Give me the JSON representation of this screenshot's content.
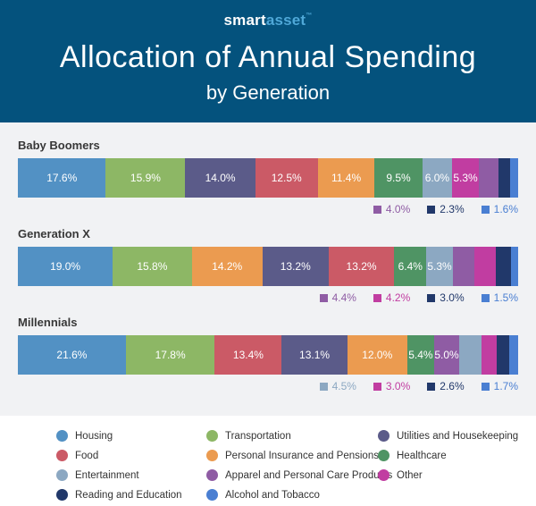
{
  "header": {
    "logo_smart": "smart",
    "logo_asset": "asset",
    "logo_tm": "™",
    "title": "Allocation of Annual Spending",
    "subtitle": "by Generation"
  },
  "colors": {
    "header_bg": "#04527d",
    "chart_bg": "#f1f2f4",
    "legend_bg": "#ffffff",
    "logo_accent": "#4fa8d8",
    "title_text": "#ffffff",
    "section_label_text": "#383838",
    "legend_text": "#333333",
    "bar_label_text": "#ffffff"
  },
  "category_colors": {
    "Housing": "#5291c4",
    "Transportation": "#8db765",
    "Utilities and Housekeeping": "#5b5b89",
    "Food": "#cb5a66",
    "Personal Insurance and Pensions": "#eb9b50",
    "Healthcare": "#4f9464",
    "Entertainment": "#8ca8c2",
    "Other": "#c13da1",
    "Apparel and Personal Care Products": "#8f5ca4",
    "Reading and Education": "#21386a",
    "Alcohol and Tobacco": "#4a7fd2"
  },
  "chart_data": {
    "type": "bar",
    "variant": "horizontal-stacked-100pct",
    "title": "Allocation of Annual Spending",
    "subtitle": "by Generation",
    "unit": "%",
    "categories": [
      "Housing",
      "Transportation",
      "Utilities and Housekeeping",
      "Food",
      "Personal Insurance and Pensions",
      "Healthcare",
      "Entertainment",
      "Other",
      "Apparel and Personal Care Products",
      "Reading and Education",
      "Alcohol and Tobacco"
    ],
    "groups": [
      {
        "label": "Baby Boomers",
        "segments": [
          {
            "category": "Housing",
            "value": 17.6,
            "label": "17.6%",
            "label_in_bar": true
          },
          {
            "category": "Transportation",
            "value": 15.9,
            "label": "15.9%",
            "label_in_bar": true
          },
          {
            "category": "Utilities and Housekeeping",
            "value": 14.0,
            "label": "14.0%",
            "label_in_bar": true
          },
          {
            "category": "Food",
            "value": 12.5,
            "label": "12.5%",
            "label_in_bar": true
          },
          {
            "category": "Personal Insurance and Pensions",
            "value": 11.4,
            "label": "11.4%",
            "label_in_bar": true
          },
          {
            "category": "Healthcare",
            "value": 9.5,
            "label": "9.5%",
            "label_in_bar": true
          },
          {
            "category": "Entertainment",
            "value": 6.0,
            "label": "6.0%",
            "label_in_bar": true
          },
          {
            "category": "Other",
            "value": 5.3,
            "label": "5.3%",
            "label_in_bar": true
          },
          {
            "category": "Apparel and Personal Care Products",
            "value": 4.0,
            "label": "4.0%",
            "label_in_bar": false
          },
          {
            "category": "Reading and Education",
            "value": 2.3,
            "label": "2.3%",
            "label_in_bar": false
          },
          {
            "category": "Alcohol and Tobacco",
            "value": 1.6,
            "label": "1.6%",
            "label_in_bar": false
          }
        ]
      },
      {
        "label": "Generation X",
        "segments": [
          {
            "category": "Housing",
            "value": 19.0,
            "label": "19.0%",
            "label_in_bar": true
          },
          {
            "category": "Transportation",
            "value": 15.8,
            "label": "15.8%",
            "label_in_bar": true
          },
          {
            "category": "Personal Insurance and Pensions",
            "value": 14.2,
            "label": "14.2%",
            "label_in_bar": true
          },
          {
            "category": "Utilities and Housekeeping",
            "value": 13.2,
            "label": "13.2%",
            "label_in_bar": true
          },
          {
            "category": "Food",
            "value": 13.2,
            "label": "13.2%",
            "label_in_bar": true
          },
          {
            "category": "Healthcare",
            "value": 6.4,
            "label": "6.4%",
            "label_in_bar": true
          },
          {
            "category": "Entertainment",
            "value": 5.3,
            "label": "5.3%",
            "label_in_bar": true
          },
          {
            "category": "Apparel and Personal Care Products",
            "value": 4.4,
            "label": "4.4%",
            "label_in_bar": false
          },
          {
            "category": "Other",
            "value": 4.2,
            "label": "4.2%",
            "label_in_bar": false
          },
          {
            "category": "Reading and Education",
            "value": 3.0,
            "label": "3.0%",
            "label_in_bar": false
          },
          {
            "category": "Alcohol and Tobacco",
            "value": 1.5,
            "label": "1.5%",
            "label_in_bar": false
          }
        ]
      },
      {
        "label": "Millennials",
        "segments": [
          {
            "category": "Housing",
            "value": 21.6,
            "label": "21.6%",
            "label_in_bar": true
          },
          {
            "category": "Transportation",
            "value": 17.8,
            "label": "17.8%",
            "label_in_bar": true
          },
          {
            "category": "Food",
            "value": 13.4,
            "label": "13.4%",
            "label_in_bar": true
          },
          {
            "category": "Utilities and Housekeeping",
            "value": 13.1,
            "label": "13.1%",
            "label_in_bar": true
          },
          {
            "category": "Personal Insurance and Pensions",
            "value": 12.0,
            "label": "12.0%",
            "label_in_bar": true
          },
          {
            "category": "Healthcare",
            "value": 5.4,
            "label": "5.4%",
            "label_in_bar": true
          },
          {
            "category": "Apparel and Personal Care Products",
            "value": 5.0,
            "label": "5.0%",
            "label_in_bar": true
          },
          {
            "category": "Entertainment",
            "value": 4.5,
            "label": "4.5%",
            "label_in_bar": false
          },
          {
            "category": "Other",
            "value": 3.0,
            "label": "3.0%",
            "label_in_bar": false
          },
          {
            "category": "Reading and Education",
            "value": 2.6,
            "label": "2.6%",
            "label_in_bar": false
          },
          {
            "category": "Alcohol and Tobacco",
            "value": 1.7,
            "label": "1.7%",
            "label_in_bar": false
          }
        ]
      }
    ],
    "legend_position": "bottom"
  },
  "legend": {
    "columns": [
      [
        "Housing",
        "Food",
        "Entertainment",
        "Reading and Education"
      ],
      [
        "Transportation",
        "Personal Insurance and Pensions",
        "Apparel and Personal Care Products",
        "Alcohol and Tobacco"
      ],
      [
        "Utilities and Housekeeping",
        "Healthcare",
        "Other"
      ]
    ]
  }
}
